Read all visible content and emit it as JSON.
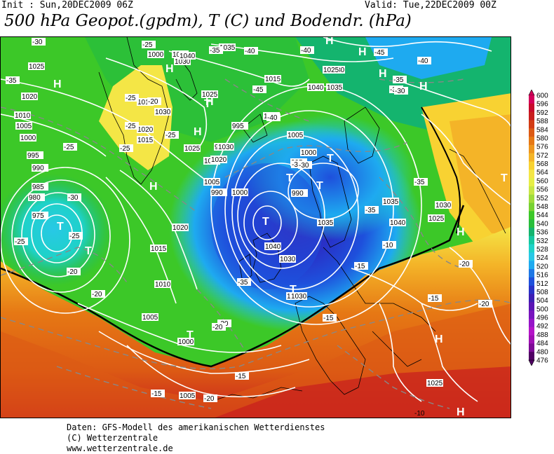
{
  "header": {
    "init": "Init : Sun,20DEC2009 06Z",
    "valid": "Valid: Tue,22DEC2009 00Z",
    "title": "500 hPa Geopot.(gpdm), T (C) und Bodendr. (hPa)"
  },
  "footer": {
    "line1": "Daten: GFS-Modell des amerikanischen Wetterdienstes",
    "line2": "(C) Wetterzentrale",
    "line3": "www.wetterzentrale.de"
  },
  "colorbar": {
    "levels": [
      "600",
      "596",
      "592",
      "588",
      "584",
      "580",
      "576",
      "572",
      "568",
      "564",
      "560",
      "556",
      "552",
      "548",
      "544",
      "540",
      "536",
      "532",
      "528",
      "524",
      "520",
      "516",
      "512",
      "508",
      "504",
      "500",
      "496",
      "492",
      "488",
      "484",
      "480",
      "476"
    ],
    "colors": [
      "#d4005a",
      "#c80a2c",
      "#c81e1e",
      "#d23c14",
      "#dc5a14",
      "#e67814",
      "#ee961e",
      "#f4b428",
      "#f8d232",
      "#f4e646",
      "#e6ee46",
      "#c8e646",
      "#a0dc3c",
      "#78d232",
      "#3cc828",
      "#28be3c",
      "#14b46e",
      "#14c8a0",
      "#1ed2c8",
      "#28c8e6",
      "#1eaaf0",
      "#1e78e6",
      "#1e50dc",
      "#2832c8",
      "#3c1eb4",
      "#5a14b4",
      "#7814be",
      "#9614c8",
      "#b414c8",
      "#a00fb4",
      "#7d0a96",
      "#500064"
    ]
  },
  "map_labels": {
    "pressure": [
      "1040",
      "1035",
      "1030",
      "1025",
      "1020",
      "1015",
      "1010",
      "1005",
      "1000",
      "995",
      "990",
      "985",
      "980",
      "975",
      "1040",
      "1035",
      "1030",
      "1025",
      "1020",
      "1015",
      "1010",
      "1005",
      "1000",
      "995",
      "990",
      "985",
      "1030",
      "1025",
      "1020",
      "1015",
      "1010",
      "1005",
      "1000",
      "995",
      "990",
      "1035",
      "1040",
      "1030",
      "1025",
      "1030",
      "1035",
      "1040",
      "1040",
      "1035",
      "1030",
      "1025",
      "1025",
      "1030",
      "1025",
      "1020",
      "1015",
      "1010",
      "1005",
      "1000",
      "1005",
      "1000"
    ],
    "temps": [
      "-25",
      "-35",
      "-30",
      "-25",
      "-20",
      "-25",
      "-25",
      "-25",
      "-25",
      "-35",
      "-40",
      "-45",
      "-40",
      "-45",
      "-40",
      "-35",
      "-40",
      "-35",
      "-30",
      "-35",
      "-33",
      "-30",
      "-35",
      "-35",
      "-20",
      "-15",
      "-20",
      "-15",
      "-10",
      "-15",
      "-20",
      "-25",
      "-30",
      "-20",
      "-25",
      "-20",
      "-15",
      "-10",
      "-20",
      "-15",
      "-20"
    ],
    "highs": [
      "H",
      "H",
      "H",
      "H",
      "H",
      "H",
      "H",
      "H",
      "H",
      "H",
      "H",
      "H"
    ],
    "lows": [
      "T",
      "T",
      "T",
      "T",
      "T",
      "T",
      "T",
      "T",
      "T",
      "T"
    ]
  }
}
